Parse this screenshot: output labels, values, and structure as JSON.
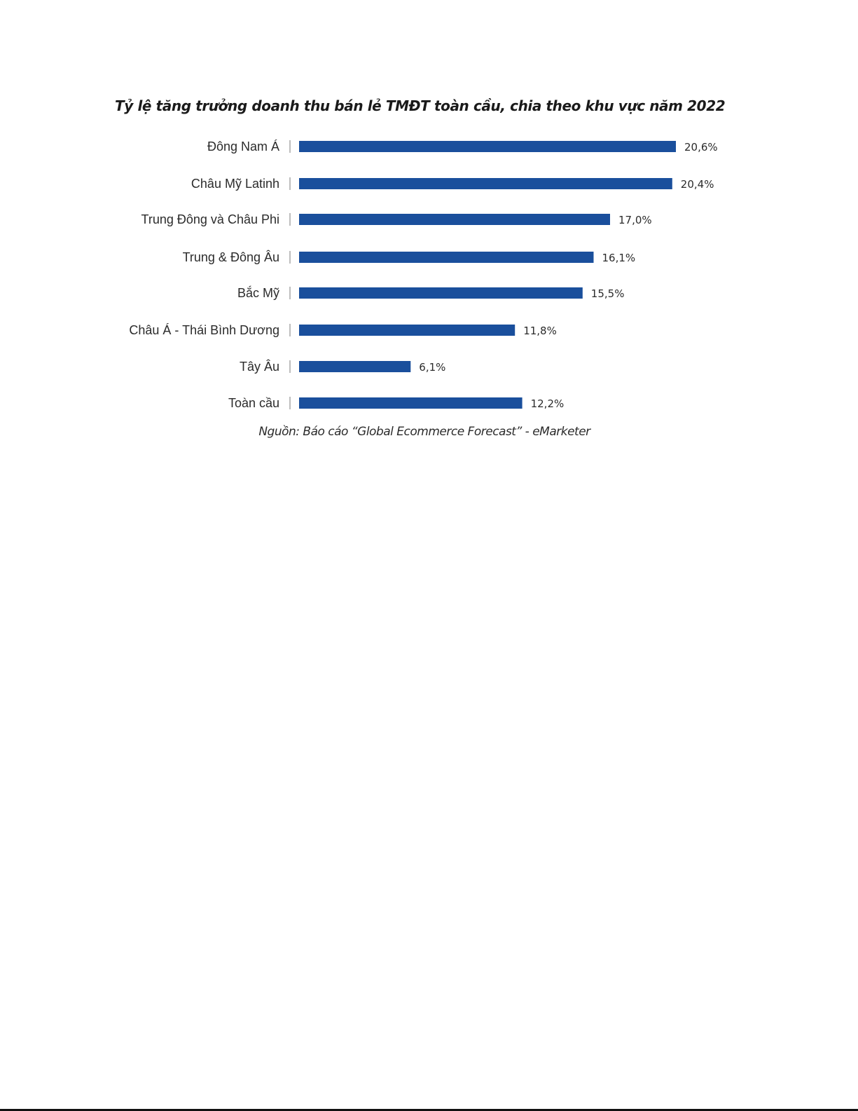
{
  "chart_data": {
    "type": "bar",
    "orientation": "horizontal",
    "title": "Tỷ lệ tăng trưởng doanh thu bán lẻ TMĐT toàn cầu, chia theo khu vực năm 2022",
    "categories": [
      "Đông Nam Á",
      "Châu Mỹ Latinh",
      "Trung Đông và Châu Phi",
      "Trung & Đông Âu",
      "Bắc Mỹ",
      "Châu Á - Thái Bình Dương",
      "Tây Âu",
      "Toàn cầu"
    ],
    "values": [
      20.6,
      20.4,
      17.0,
      16.1,
      15.5,
      11.8,
      6.1,
      12.2
    ],
    "value_labels": [
      "20,6%",
      "20,4%",
      "17,0%",
      "16,1%",
      "15,5%",
      "11,8%",
      "6,1%",
      "12,2%"
    ],
    "unit": "%",
    "xlim": [
      0,
      20.6
    ],
    "grid": false,
    "legend": "none",
    "bar_color": "#1a4f9c",
    "source": "Nguồn: Báo cáo “Global Ecommerce Forecast” - eMarketer"
  }
}
